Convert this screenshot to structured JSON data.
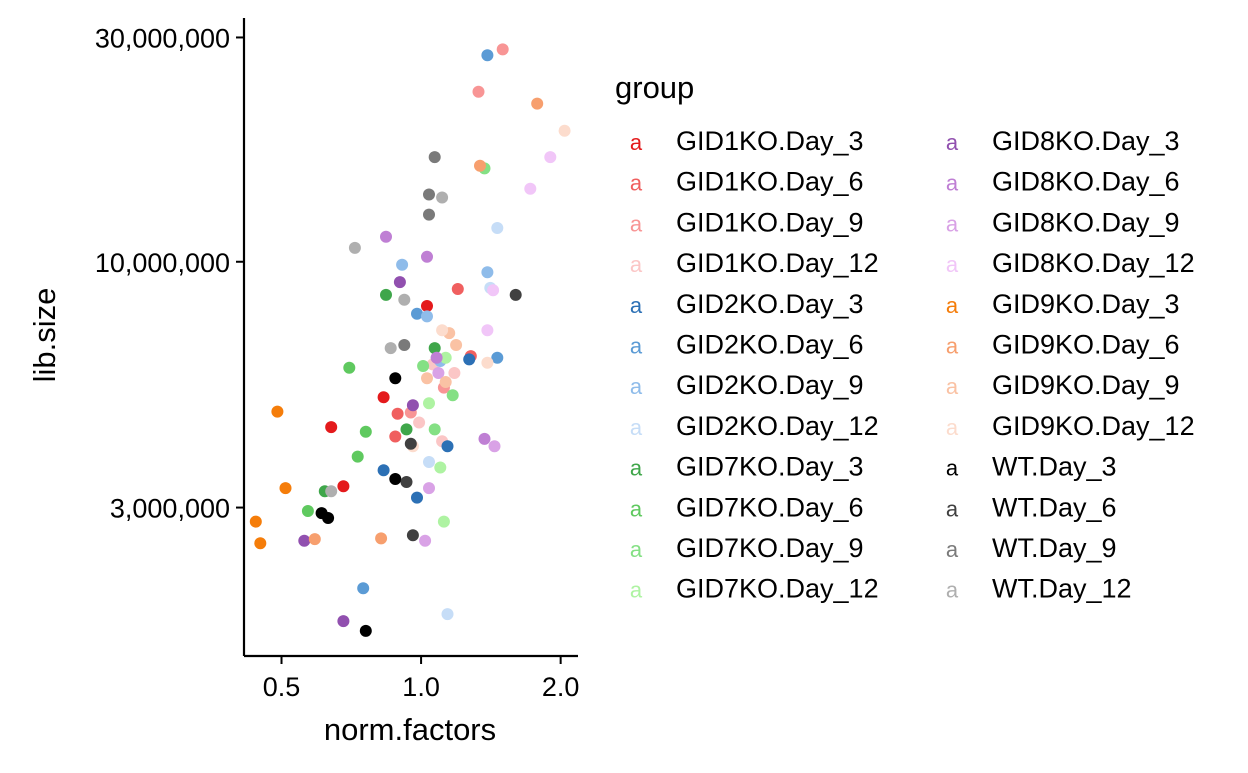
{
  "chart_data": {
    "type": "scatter",
    "title": "",
    "xlabel": "norm.factors",
    "ylabel": "lib.size",
    "x_scale": "log10",
    "y_scale": "log10",
    "xlim": [
      0.415,
      2.18
    ],
    "ylim": [
      1450000,
      33000000
    ],
    "x_ticks": [
      {
        "value": 0.5,
        "label": "0.5"
      },
      {
        "value": 1.0,
        "label": "1.0"
      },
      {
        "value": 2.0,
        "label": "2.0"
      }
    ],
    "y_ticks": [
      {
        "value": 3000000,
        "label": "3,000,000"
      },
      {
        "value": 10000000,
        "label": "10,000,000"
      },
      {
        "value": 30000000,
        "label": "30,000,000"
      }
    ],
    "grid": false,
    "legend": {
      "title": "group",
      "position": "right",
      "key_glyph": "a",
      "columns": 2
    },
    "series": [
      {
        "name": "GID1KO.Day_3",
        "color": "#E41A1C",
        "points": [
          [
            0.64,
            4450000
          ],
          [
            0.83,
            5150000
          ],
          [
            1.03,
            8050000
          ],
          [
            0.68,
            3330000
          ]
        ]
      },
      {
        "name": "GID1KO.Day_6",
        "color": "#F05F5F",
        "points": [
          [
            0.89,
            4750000
          ],
          [
            1.28,
            6300000
          ],
          [
            0.88,
            4250000
          ],
          [
            1.2,
            8750000
          ]
        ]
      },
      {
        "name": "GID1KO.Day_9",
        "color": "#F89595",
        "points": [
          [
            1.5,
            28300000
          ],
          [
            1.33,
            23000000
          ],
          [
            0.95,
            4780000
          ],
          [
            1.12,
            5400000
          ]
        ]
      },
      {
        "name": "GID1KO.Day_12",
        "color": "#FBC6C6",
        "points": [
          [
            1.11,
            4150000
          ],
          [
            0.99,
            4550000
          ],
          [
            1.18,
            5800000
          ],
          [
            1.06,
            6050000
          ]
        ]
      },
      {
        "name": "GID2KO.Day_3",
        "color": "#2C70B5",
        "points": [
          [
            1.14,
            4050000
          ],
          [
            1.27,
            6200000
          ],
          [
            0.83,
            3600000
          ],
          [
            0.98,
            3150000
          ]
        ]
      },
      {
        "name": "GID2KO.Day_6",
        "color": "#5B9BD5",
        "points": [
          [
            1.39,
            27500000
          ],
          [
            0.98,
            7750000
          ],
          [
            1.46,
            6250000
          ],
          [
            0.75,
            2020000
          ]
        ]
      },
      {
        "name": "GID2KO.Day_9",
        "color": "#8FBCEA",
        "points": [
          [
            0.91,
            9850000
          ],
          [
            1.39,
            9500000
          ],
          [
            1.1,
            6150000
          ],
          [
            1.03,
            7650000
          ]
        ]
      },
      {
        "name": "GID2KO.Day_12",
        "color": "#C6DDF7",
        "points": [
          [
            1.46,
            11800000
          ],
          [
            1.41,
            8800000
          ],
          [
            1.14,
            1780000
          ],
          [
            1.04,
            3750000
          ]
        ]
      },
      {
        "name": "GID7KO.Day_3",
        "color": "#3FA64A",
        "points": [
          [
            0.84,
            8500000
          ],
          [
            1.07,
            6550000
          ],
          [
            0.93,
            4400000
          ],
          [
            0.62,
            3250000
          ]
        ]
      },
      {
        "name": "GID7KO.Day_6",
        "color": "#5FC95F",
        "points": [
          [
            0.7,
            5950000
          ],
          [
            0.76,
            4350000
          ],
          [
            0.73,
            3850000
          ],
          [
            0.57,
            2950000
          ]
        ]
      },
      {
        "name": "GID7KO.Day_9",
        "color": "#84E084",
        "points": [
          [
            1.37,
            15800000
          ],
          [
            1.01,
            6000000
          ],
          [
            1.07,
            4400000
          ],
          [
            1.17,
            5200000
          ]
        ]
      },
      {
        "name": "GID7KO.Day_12",
        "color": "#AEF3A2",
        "points": [
          [
            1.04,
            5000000
          ],
          [
            1.12,
            2800000
          ],
          [
            1.13,
            6250000
          ],
          [
            1.1,
            3650000
          ]
        ]
      },
      {
        "name": "GID8KO.Day_3",
        "color": "#9150AF",
        "points": [
          [
            0.9,
            9050000
          ],
          [
            0.96,
            4950000
          ],
          [
            0.68,
            1720000
          ],
          [
            0.56,
            2550000
          ]
        ]
      },
      {
        "name": "GID8KO.Day_6",
        "color": "#BF7FD4",
        "points": [
          [
            0.84,
            11300000
          ],
          [
            1.03,
            10250000
          ],
          [
            1.08,
            6250000
          ],
          [
            1.37,
            4200000
          ]
        ]
      },
      {
        "name": "GID8KO.Day_9",
        "color": "#D9A2E6",
        "points": [
          [
            1.44,
            4050000
          ],
          [
            1.09,
            5800000
          ],
          [
            1.02,
            2550000
          ],
          [
            1.04,
            3300000
          ]
        ]
      },
      {
        "name": "GID8KO.Day_12",
        "color": "#F1C6F8",
        "points": [
          [
            1.9,
            16700000
          ],
          [
            1.72,
            14300000
          ],
          [
            1.43,
            8700000
          ],
          [
            1.39,
            7150000
          ]
        ]
      },
      {
        "name": "GID9KO.Day_3",
        "color": "#F57D0A",
        "points": [
          [
            0.49,
            4800000
          ],
          [
            0.51,
            3300000
          ],
          [
            0.44,
            2800000
          ],
          [
            0.45,
            2520000
          ]
        ]
      },
      {
        "name": "GID9KO.Day_6",
        "color": "#F79F6E",
        "points": [
          [
            1.78,
            21700000
          ],
          [
            1.34,
            16000000
          ],
          [
            0.82,
            2580000
          ],
          [
            0.59,
            2570000
          ]
        ]
      },
      {
        "name": "GID9KO.Day_9",
        "color": "#FAC2A4",
        "points": [
          [
            1.03,
            5650000
          ],
          [
            1.15,
            7050000
          ],
          [
            1.19,
            6650000
          ],
          [
            1.13,
            5550000
          ]
        ]
      },
      {
        "name": "GID9KO.Day_12",
        "color": "#FCDCCD",
        "points": [
          [
            2.04,
            19000000
          ],
          [
            1.39,
            6100000
          ],
          [
            1.11,
            7150000
          ],
          [
            0.96,
            4050000
          ]
        ]
      },
      {
        "name": "WT.Day_3",
        "color": "#000000",
        "points": [
          [
            0.61,
            2920000
          ],
          [
            0.63,
            2850000
          ],
          [
            0.88,
            5650000
          ],
          [
            0.88,
            3450000
          ],
          [
            0.76,
            1640000
          ]
        ]
      },
      {
        "name": "WT.Day_6",
        "color": "#404040",
        "points": [
          [
            1.6,
            8500000
          ],
          [
            0.95,
            4100000
          ],
          [
            0.96,
            2620000
          ],
          [
            0.93,
            3400000
          ]
        ]
      },
      {
        "name": "WT.Day_9",
        "color": "#7A7A7A",
        "points": [
          [
            1.07,
            16700000
          ],
          [
            1.04,
            13900000
          ],
          [
            1.04,
            12600000
          ],
          [
            0.92,
            6650000
          ]
        ]
      },
      {
        "name": "WT.Day_12",
        "color": "#AFAFAF",
        "points": [
          [
            0.72,
            10700000
          ],
          [
            0.86,
            6550000
          ],
          [
            0.92,
            8300000
          ],
          [
            1.11,
            13700000
          ],
          [
            0.64,
            3250000
          ]
        ]
      }
    ]
  }
}
